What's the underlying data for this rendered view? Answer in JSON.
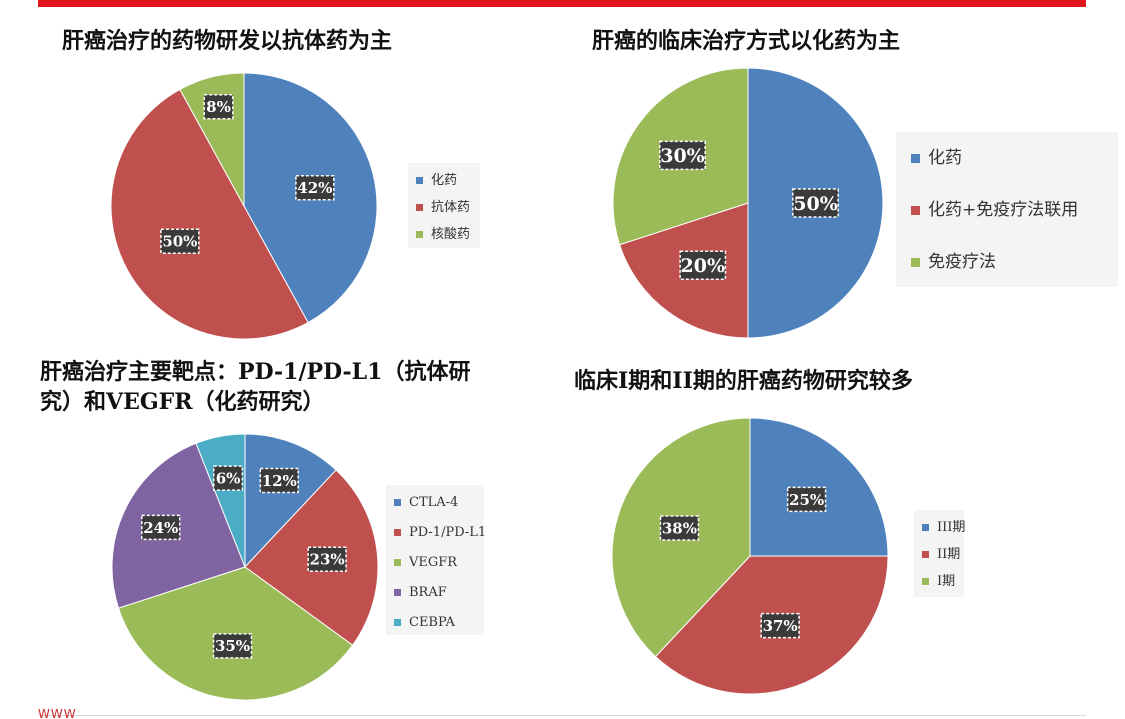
{
  "page": {
    "footer": "WWW"
  },
  "chart_data": [
    {
      "type": "pie",
      "title": "肝癌治疗的药物研发以抗体药为主",
      "labels": [
        "化药",
        "抗体药",
        "核酸药"
      ],
      "values": [
        42,
        50,
        8
      ],
      "value_labels": [
        "42%",
        "50%",
        "8%"
      ],
      "colors": [
        "#4f81bd",
        "#c0504d",
        "#9bbb59"
      ],
      "legend_position": "right"
    },
    {
      "type": "pie",
      "title": "肝癌的临床治疗方式以化药为主",
      "labels": [
        "化药",
        "化药+免疫疗法联用",
        "免疫疗法"
      ],
      "values": [
        50,
        20,
        30
      ],
      "value_labels": [
        "50%",
        "20%",
        "30%"
      ],
      "colors": [
        "#4f81bd",
        "#c0504d",
        "#9bbb59"
      ],
      "legend_position": "right"
    },
    {
      "type": "pie",
      "title": "肝癌治疗主要靶点：PD-1/PD-L1（抗体研究）和VEGFR（化药研究）",
      "labels": [
        "CTLA-4",
        "PD-1/PD-L1",
        "VEGFR",
        "BRAF",
        "CEBPA"
      ],
      "values": [
        12,
        23,
        35,
        24,
        6
      ],
      "value_labels": [
        "12%",
        "23%",
        "35%",
        "24%",
        "6%"
      ],
      "colors": [
        "#4f81bd",
        "#c0504d",
        "#9bbb59",
        "#8064a2",
        "#4bacc6"
      ],
      "legend_position": "right"
    },
    {
      "type": "pie",
      "title": "临床I期和II期的肝癌药物研究较多",
      "labels": [
        "III期",
        "II期",
        "I期"
      ],
      "values": [
        25,
        37,
        38
      ],
      "value_labels": [
        "25%",
        "37%",
        "38%"
      ],
      "colors": [
        "#4f81bd",
        "#c0504d",
        "#9bbb59"
      ],
      "legend_position": "right"
    }
  ]
}
